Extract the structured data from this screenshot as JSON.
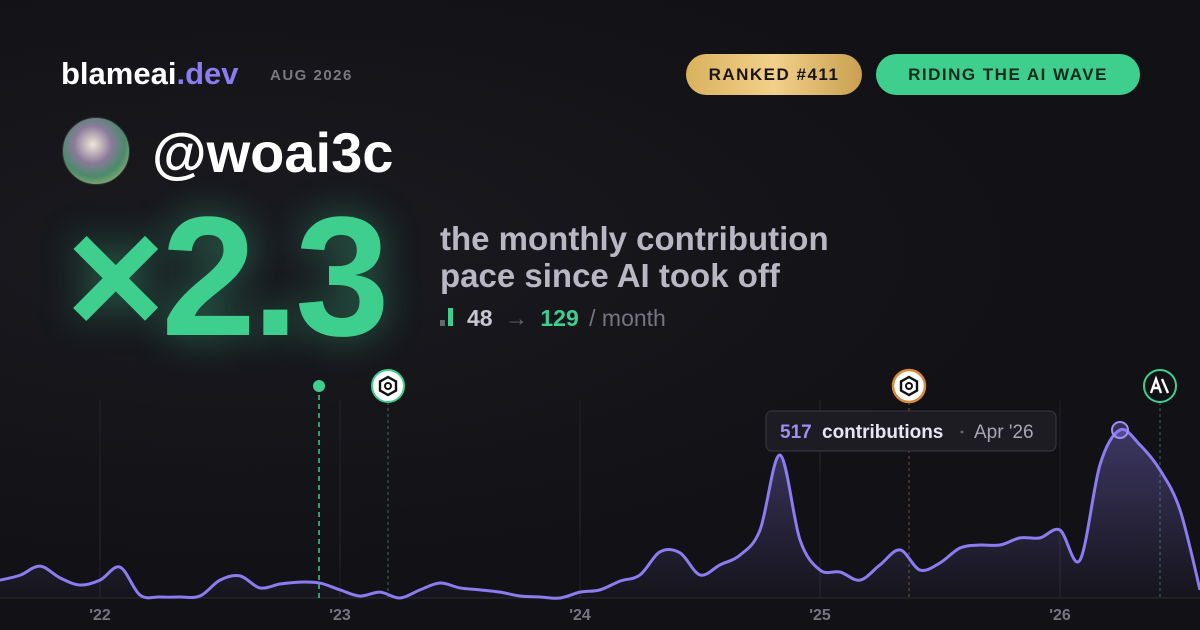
{
  "header": {
    "brand": "blameai",
    "brand_suffix": ".dev",
    "date": "AUG 2026",
    "rank_badge": "RANKED #411",
    "status_badge": "RIDING THE AI WAVE",
    "username": "@woai3c"
  },
  "hero": {
    "multiplier": "×2.3",
    "caption_line1": "the monthly contribution",
    "caption_line2": "pace since AI took off",
    "before": "48",
    "arrow": "→",
    "after": "129",
    "unit": "/ month"
  },
  "chart_data": {
    "type": "area",
    "color": "#8b7cf0",
    "categories": [
      null,
      null,
      null,
      null,
      null,
      "'22",
      null,
      null,
      null,
      null,
      null,
      null,
      null,
      null,
      null,
      null,
      null,
      "'23",
      null,
      null,
      null,
      null,
      null,
      null,
      null,
      null,
      null,
      null,
      null,
      "'24",
      null,
      null,
      null,
      null,
      null,
      null,
      null,
      null,
      null,
      null,
      null,
      "'25",
      null,
      null,
      null,
      null,
      null,
      null,
      null,
      null,
      null,
      null,
      null,
      "'26",
      null,
      null,
      null,
      null,
      null,
      null,
      null
    ],
    "values": [
      55,
      70,
      98,
      62,
      40,
      55,
      95,
      9,
      3,
      3,
      6,
      55,
      68,
      31,
      43,
      49,
      46,
      25,
      6,
      18,
      0,
      25,
      46,
      31,
      25,
      18,
      6,
      3,
      0,
      18,
      25,
      52,
      71,
      142,
      139,
      71,
      102,
      132,
      209,
      440,
      179,
      86,
      80,
      55,
      102,
      148,
      86,
      108,
      154,
      163,
      163,
      185,
      185,
      209,
      117,
      410,
      517,
      471,
      394,
      271,
      25
    ],
    "ylim": [
      0,
      560
    ],
    "tooltip_label": "contributions",
    "tooltip_date": "Apr '26"
  }
}
